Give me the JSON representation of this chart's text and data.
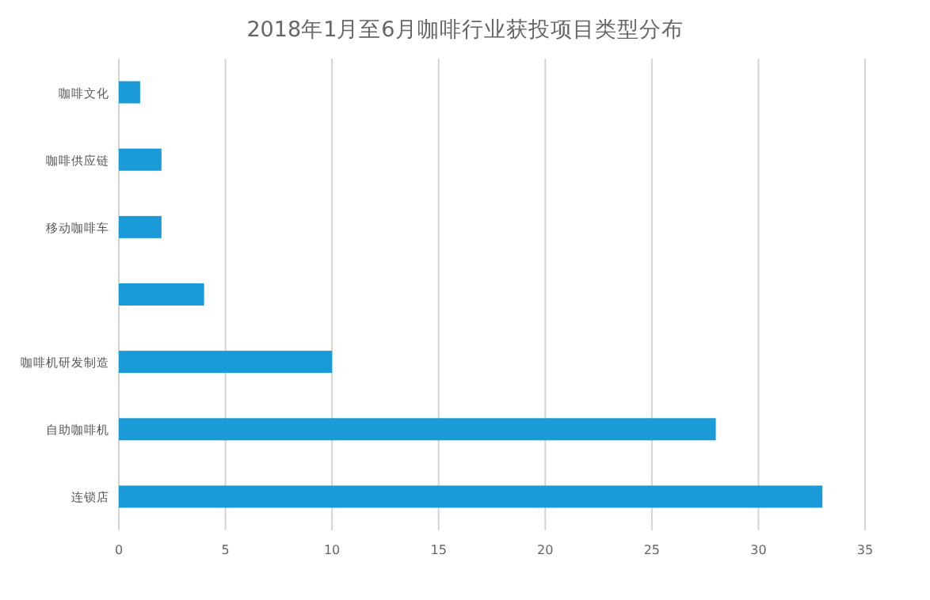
{
  "chart_data": {
    "type": "bar",
    "orientation": "horizontal",
    "title": "2018年1月至6月咖啡行业获投项目类型分布",
    "categories": [
      "咖啡文化",
      "咖啡供应链",
      "移动咖啡车",
      null,
      "咖啡机研发制造",
      "自助咖啡机",
      "连锁店"
    ],
    "values": [
      1,
      2,
      2,
      4,
      10,
      28,
      33
    ],
    "color": "#1a9ad6",
    "xlim": [
      0,
      35
    ],
    "xticks": [
      0,
      5,
      10,
      15,
      20,
      25,
      30,
      35
    ],
    "grid": "x"
  }
}
